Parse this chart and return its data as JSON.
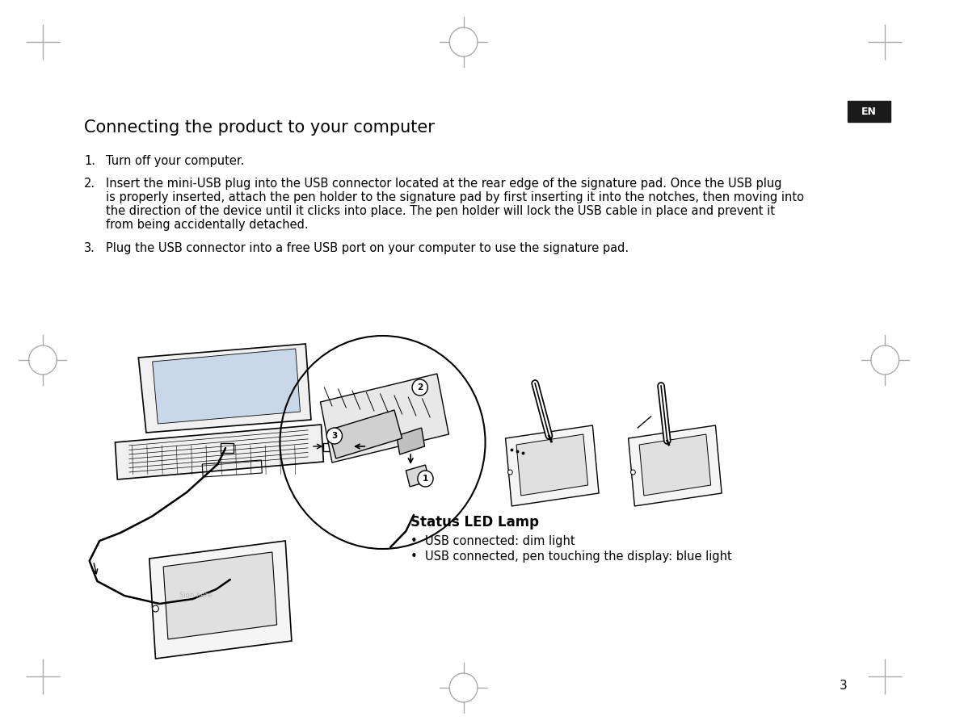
{
  "bg_color": "#ffffff",
  "page_title": "Connecting the product to your computer",
  "lang_tag": "EN",
  "lang_tag_bg": "#1a1a1a",
  "lang_tag_fg": "#ffffff",
  "step1_num": "1.",
  "step1_text": "Turn off your computer.",
  "step2_num": "2.",
  "step2_line1": "Insert the mini-USB plug into the USB connector located at the rear edge of the signature pad. Once the USB plug",
  "step2_line2": "is properly inserted, attach the pen holder to the signature pad by first inserting it into the notches, then moving into",
  "step2_line3": "the direction of the device until it clicks into place. The pen holder will lock the USB cable in place and prevent it",
  "step2_line4": "from being accidentally detached.",
  "step3_num": "3.",
  "step3_text": "Plug the USB connector into a free USB port on your computer to use the signature pad.",
  "status_title": "Status LED Lamp",
  "status_bullet1": "USB connected: dim light",
  "status_bullet2": "USB connected, pen touching the display: blue light",
  "page_number": "3",
  "title_fontsize": 15,
  "body_fontsize": 10.5,
  "status_title_fontsize": 12,
  "status_body_fontsize": 10.5,
  "text_color": "#000000",
  "corner_mark_color": "#aaaaaa",
  "illustration_color": "#000000"
}
